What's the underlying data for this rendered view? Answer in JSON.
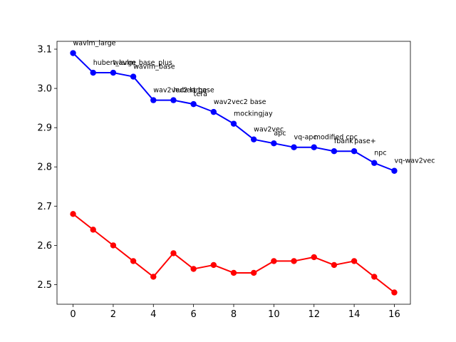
{
  "chart_data": {
    "type": "line",
    "title": "",
    "xlabel": "",
    "ylabel": "",
    "xlim": [
      -0.8,
      16.8
    ],
    "ylim": [
      2.45,
      3.12
    ],
    "xticks": [
      0,
      2,
      4,
      6,
      8,
      10,
      12,
      14,
      16
    ],
    "yticks": [
      2.5,
      2.6,
      2.7,
      2.8,
      2.9,
      3.0,
      3.1
    ],
    "grid": false,
    "legend": "none",
    "x": [
      0,
      1,
      2,
      3,
      4,
      5,
      6,
      7,
      8,
      9,
      10,
      11,
      12,
      13,
      14,
      15,
      16
    ],
    "series": [
      {
        "color": "#0000ff",
        "values": [
          3.09,
          3.04,
          3.04,
          3.03,
          2.97,
          2.97,
          2.96,
          2.94,
          2.91,
          2.87,
          2.86,
          2.85,
          2.85,
          2.84,
          2.84,
          2.81,
          2.79
        ],
        "point_labels": [
          "wavlm_large",
          "hubert_large",
          "wavlm_base_plus",
          "wavlm_base",
          "wav2vec2 large",
          "hubert base",
          "tera",
          "wav2vec2 base",
          "mockingjay",
          "wav2vec",
          "apc",
          "vq-apc",
          "modified cpc",
          "fbank",
          "pase+",
          "npc",
          "vq-wav2vec"
        ]
      },
      {
        "color": "#ff0000",
        "values": [
          2.68,
          2.64,
          2.6,
          2.56,
          2.52,
          2.58,
          2.54,
          2.55,
          2.53,
          2.53,
          2.56,
          2.56,
          2.57,
          2.55,
          2.56,
          2.52,
          2.48
        ]
      }
    ]
  }
}
